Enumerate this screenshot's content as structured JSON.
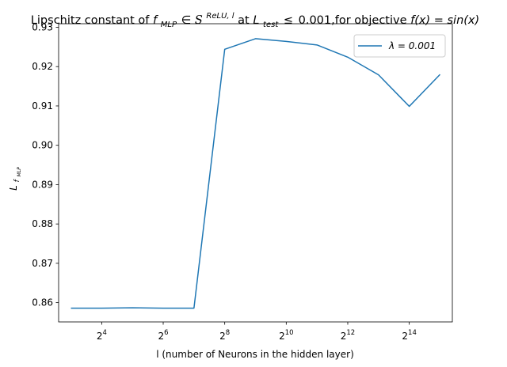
{
  "chart_data": {
    "type": "line",
    "title": {
      "prefix": "Lipschitz constant of ",
      "f_sym": "f",
      "f_sub": "MLP",
      "member": "∈",
      "S_sym": "S",
      "S_sup": "ReLU, l",
      "mid": " at ",
      "L_sym": "L",
      "L_sub": "test",
      "leq": "≤",
      "tail": "0.001,for objective ",
      "obj": "f(x) = sin(x)"
    },
    "xlabel": "l (number of Neurons in the hidden layer)",
    "ylabel": {
      "main": "L",
      "sub": "f",
      "subsub": "MLP"
    },
    "x_scale": "log2",
    "x_ticks": [
      {
        "exp": 4,
        "base": "2",
        "sup": "4"
      },
      {
        "exp": 6,
        "base": "2",
        "sup": "6"
      },
      {
        "exp": 8,
        "base": "2",
        "sup": "8"
      },
      {
        "exp": 10,
        "base": "2",
        "sup": "10"
      },
      {
        "exp": 12,
        "base": "2",
        "sup": "12"
      },
      {
        "exp": 14,
        "base": "2",
        "sup": "14"
      }
    ],
    "y_ticks": [
      "0.86",
      "0.87",
      "0.88",
      "0.89",
      "0.90",
      "0.91",
      "0.92",
      "0.93"
    ],
    "xlim_exp": [
      2.6,
      15.4
    ],
    "ylim": [
      0.8551,
      0.9309
    ],
    "grid": false,
    "legend_position": "top-right",
    "series": [
      {
        "name": "λ = 0.001",
        "color": "#1f77b4",
        "x_exp": [
          3,
          4,
          5,
          6,
          7,
          8,
          9,
          10,
          11,
          12,
          13,
          14,
          15
        ],
        "values": [
          0.8586,
          0.8586,
          0.8587,
          0.8586,
          0.8586,
          0.9244,
          0.9271,
          0.9264,
          0.9255,
          0.9224,
          0.9179,
          0.9099,
          0.918
        ]
      }
    ]
  }
}
